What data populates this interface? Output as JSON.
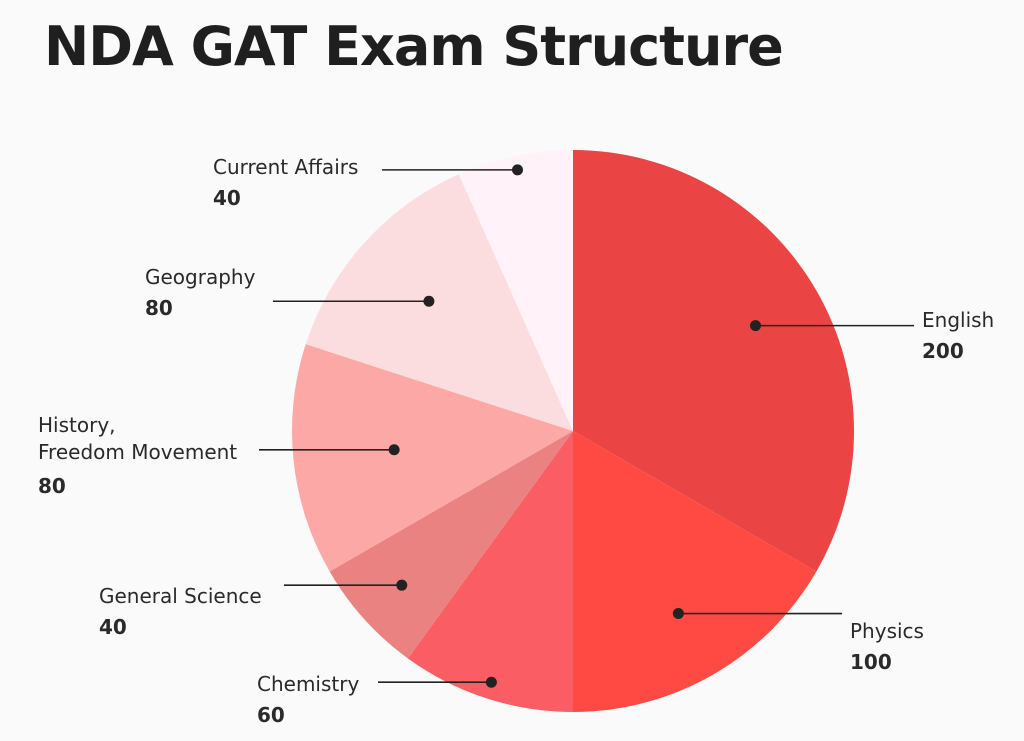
{
  "title": "NDA GAT Exam Structure",
  "chart_data": {
    "type": "pie",
    "start_angle_deg": 0,
    "direction": "clockwise",
    "slices": [
      {
        "label": "English",
        "value": 200,
        "color": "#ea4444"
      },
      {
        "label": "Physics",
        "value": 100,
        "color": "#fe4a42"
      },
      {
        "label": "Chemistry",
        "value": 60,
        "color": "#fa5d64"
      },
      {
        "label": "General Science",
        "value": 40,
        "color": "#ea8282"
      },
      {
        "label": "History, Freedom Movement",
        "value": 80,
        "color": "#fba8a6"
      },
      {
        "label": "Geography",
        "value": 80,
        "color": "#fcdddf"
      },
      {
        "label": "Current Affairs",
        "value": 40,
        "color": "#fff2f8"
      }
    ]
  }
}
